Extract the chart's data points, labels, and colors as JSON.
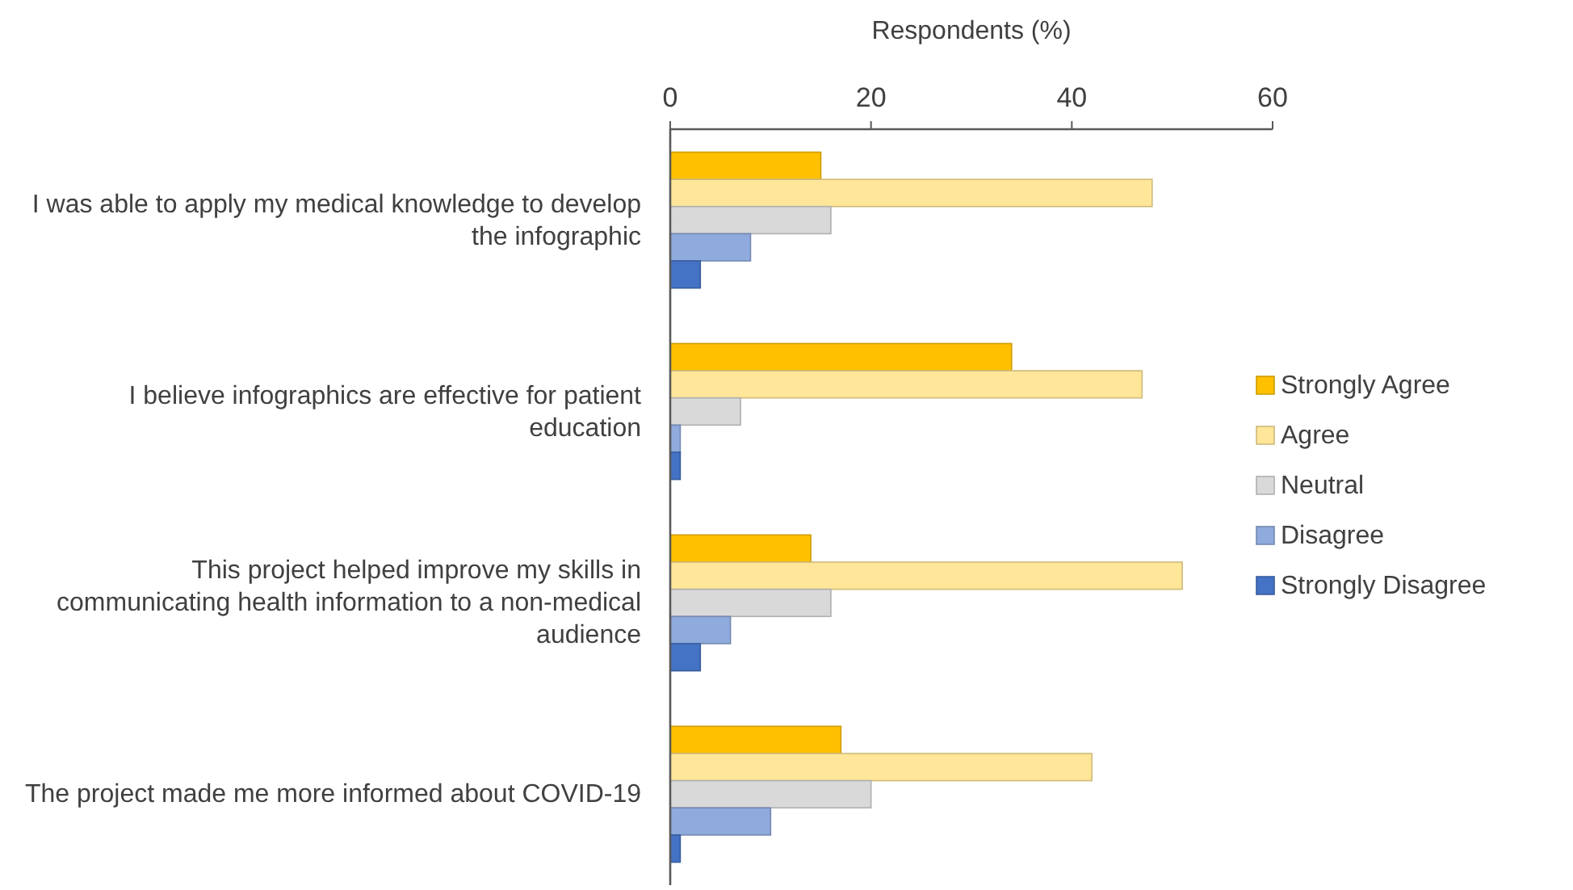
{
  "chart_data": {
    "type": "bar",
    "orientation": "horizontal",
    "xlabel": "Respondents (%)",
    "categories": [
      "I was able to apply my medical knowledge to develop the infographic",
      "I believe infographics are effective for patient education",
      "This project helped improve my skills in communicating health information to a non-medical audience",
      "The project made me more informed about COVID-19"
    ],
    "series": [
      {
        "name": "Strongly Agree",
        "color": "#ffc000",
        "values": [
          15,
          34,
          14,
          17
        ]
      },
      {
        "name": "Agree",
        "color": "#ffe699",
        "values": [
          48,
          47,
          51,
          42
        ]
      },
      {
        "name": "Neutral",
        "color": "#d9d9d9",
        "values": [
          16,
          7,
          16,
          20
        ]
      },
      {
        "name": "Disagree",
        "color": "#8faadc",
        "values": [
          8,
          1,
          6,
          10
        ]
      },
      {
        "name": "Strongly Disagree",
        "color": "#4472c4",
        "values": [
          3,
          1,
          3,
          1
        ]
      }
    ],
    "xlim": [
      0,
      60
    ],
    "xticks": [
      0,
      20,
      40,
      60
    ],
    "grid": false,
    "legend": "right"
  }
}
